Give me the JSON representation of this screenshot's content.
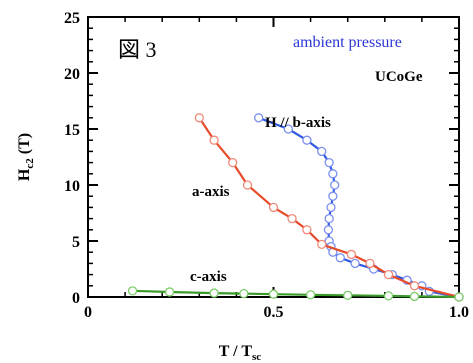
{
  "chart_data": {
    "type": "line",
    "xlabel": "T / T",
    "xlabel_sub": "sc",
    "ylabel": "H",
    "ylabel_sub": "c2",
    "ylabel_unit": " (T)",
    "xlim": [
      0,
      1.0
    ],
    "ylim": [
      0,
      25
    ],
    "xticks": [
      "0",
      "0.5",
      "1.0"
    ],
    "xtick_values": [
      0,
      0.5,
      1.0
    ],
    "xminor_step": 0.1,
    "yticks": [
      "0",
      "5",
      "10",
      "15",
      "20",
      "25"
    ],
    "ytick_values": [
      0,
      5,
      10,
      15,
      20,
      25
    ],
    "yminor_step": 1,
    "grid": false,
    "annotations": {
      "figure": "図 3",
      "condition": "ambient pressure",
      "compound": "UCoGe"
    },
    "series": [
      {
        "name": "H // b-axis",
        "color": "#2f59e0",
        "marker_color": "#7a8ff0",
        "x": [
          0.46,
          0.54,
          0.59,
          0.63,
          0.65,
          0.66,
          0.665,
          0.66,
          0.655,
          0.65,
          0.648,
          0.65,
          0.655,
          0.66,
          0.68,
          0.72,
          0.77,
          0.82,
          0.86,
          0.9,
          0.92,
          1.0
        ],
        "y": [
          16,
          15,
          14,
          13,
          12,
          11,
          10,
          9,
          8,
          7,
          6,
          5,
          4.5,
          4,
          3.5,
          3,
          2.5,
          2,
          1.5,
          1,
          0.5,
          0
        ]
      },
      {
        "name": "a-axis",
        "color": "#e64b2a",
        "marker_color": "#f08a78",
        "x": [
          0.3,
          0.34,
          0.39,
          0.43,
          0.5,
          0.55,
          0.59,
          0.63,
          0.71,
          0.76,
          0.81,
          0.88,
          1.0
        ],
        "y": [
          16,
          14,
          12,
          10,
          8,
          7,
          6,
          4.7,
          3.8,
          3,
          2,
          1,
          0
        ]
      },
      {
        "name": "c-axis",
        "color": "#3a9a2a",
        "marker_color": "#7ccc6a",
        "x": [
          0.12,
          0.22,
          0.34,
          0.42,
          0.5,
          0.6,
          0.7,
          0.81,
          0.88,
          1.0
        ],
        "y": [
          0.55,
          0.45,
          0.35,
          0.3,
          0.25,
          0.2,
          0.15,
          0.1,
          0.05,
          0
        ]
      }
    ]
  }
}
